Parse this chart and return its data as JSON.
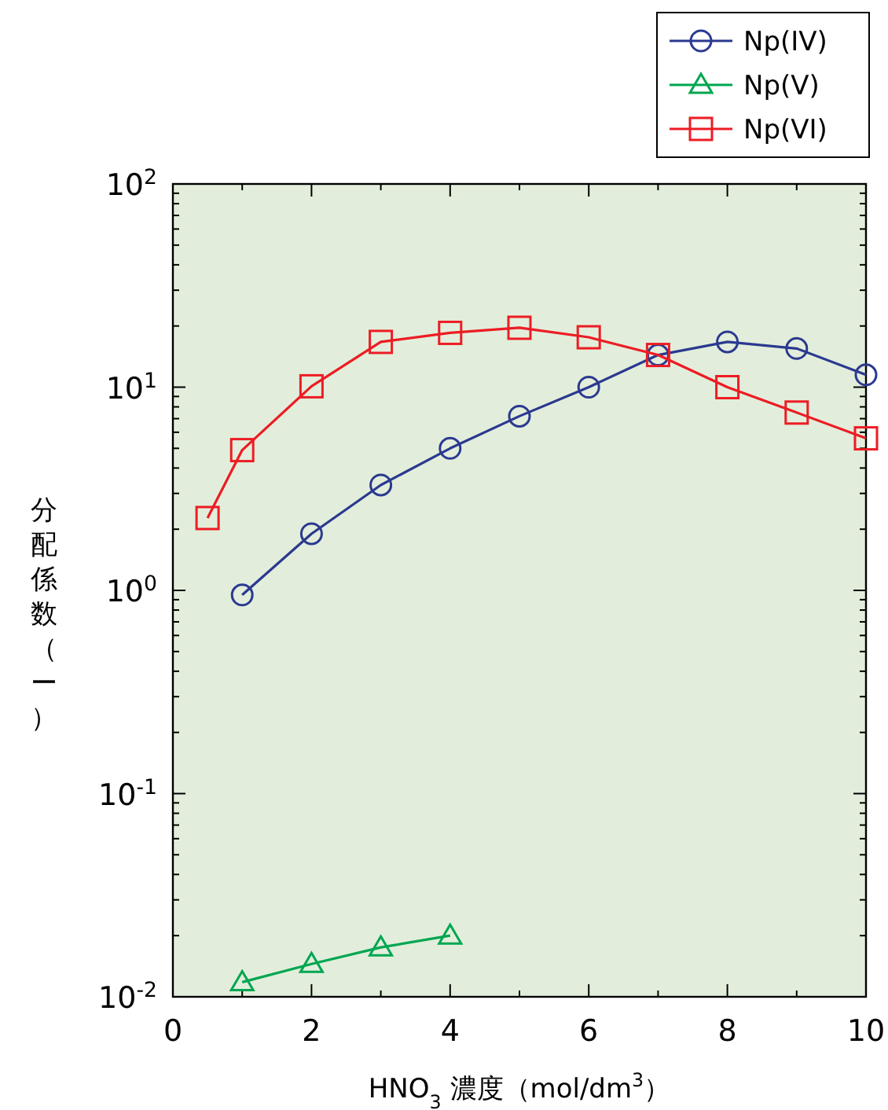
{
  "chart_data": {
    "type": "line",
    "xlabel": "HNO$_{3}$ 濃度（mol/dm$^{3}$）",
    "ylabel": "分配係数（ー）",
    "log": "y",
    "legend": "top right",
    "line_style": "solid",
    "xlim": [
      0,
      10
    ],
    "xticks": [
      0,
      2,
      4,
      6,
      8,
      10
    ],
    "ylim": [
      0.01,
      100
    ],
    "yticks": [
      {
        "value": 0.01,
        "label": "10$^{-2}$"
      },
      {
        "value": 0.1,
        "label": "10$^{-1}$"
      },
      {
        "value": 1,
        "label": "10$^{0}$"
      },
      {
        "value": 10,
        "label": "10$^{1}$"
      },
      {
        "value": 100,
        "label": "10$^{2}$"
      }
    ],
    "series": [
      {
        "name": "Np(IV)",
        "color": "#2b3990",
        "marker": "circle",
        "x": [
          1,
          2,
          3,
          4,
          5,
          6,
          7,
          8,
          9,
          10
        ],
        "values": [
          0.95,
          1.9,
          3.3,
          5.0,
          7.2,
          10,
          14.4,
          16.7,
          15.5,
          11.5
        ]
      },
      {
        "name": "Np(V)",
        "color": "#00a651",
        "marker": "triangle",
        "x": [
          1,
          2,
          3,
          4
        ],
        "values": [
          0.0118,
          0.0145,
          0.0175,
          0.02
        ]
      },
      {
        "name": "Np(VI)",
        "color": "#ed1c24",
        "marker": "square",
        "x": [
          0.5,
          1,
          2,
          3,
          4,
          5,
          6,
          7,
          8,
          9,
          10
        ],
        "values": [
          2.27,
          4.9,
          10.1,
          16.7,
          18.5,
          19.6,
          17.6,
          14.4,
          10,
          7.5,
          5.6
        ]
      }
    ]
  }
}
